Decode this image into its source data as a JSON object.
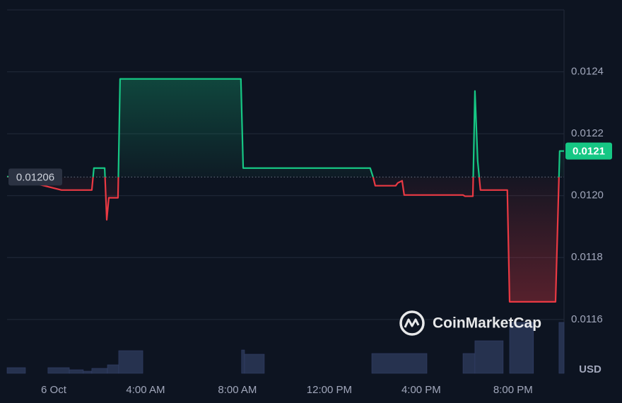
{
  "chart_data": {
    "type": "line",
    "x": [
      -2.03,
      0.34,
      1.66,
      1.75,
      2.22,
      2.31,
      2.4,
      2.8,
      2.89,
      8.15,
      8.25,
      13.78,
      13.91,
      14.0,
      14.89,
      14.98,
      15.17,
      15.26,
      17.82,
      17.91,
      18.25,
      18.34,
      18.46,
      18.58,
      19.75,
      19.85,
      21.85,
      22.03,
      22.22
    ],
    "series": [
      {
        "values": [
          0.012062,
          0.012018,
          0.012018,
          0.012089,
          0.012089,
          0.011922,
          0.011993,
          0.011993,
          0.012377,
          0.012377,
          0.012089,
          0.012089,
          0.012059,
          0.012032,
          0.012032,
          0.012041,
          0.012048,
          0.012002,
          0.012002,
          0.011998,
          0.011998,
          0.012338,
          0.012112,
          0.012018,
          0.012018,
          0.011657,
          0.011657,
          0.012144,
          0.012144
        ]
      }
    ],
    "baseline": 0.01206,
    "last_value_label": "0.0121",
    "up_color": "#16c784",
    "down_color": "#ea3943",
    "volume": {
      "x_start": [
        -2.03,
        -0.25,
        0.68,
        1.29,
        1.66,
        2.34,
        2.83,
        8.18,
        8.31,
        13.85,
        17.82,
        18.34,
        19.85,
        22.0
      ],
      "x_end": [
        -1.23,
        0.68,
        1.29,
        1.66,
        2.34,
        2.83,
        3.88,
        8.31,
        9.17,
        16.25,
        18.34,
        19.57,
        20.89,
        22.22
      ],
      "values": [
        8,
        8,
        5,
        3,
        7,
        12,
        32,
        33,
        27,
        28,
        28,
        46,
        72,
        72
      ],
      "color": "#26324f"
    },
    "xlim": [
      -2.03,
      22.22
    ],
    "xticks": [
      {
        "value": 0,
        "label": "6 Oct"
      },
      {
        "value": 4,
        "label": "4:00 AM"
      },
      {
        "value": 8,
        "label": "8:00 AM"
      },
      {
        "value": 12,
        "label": "12:00 PM"
      },
      {
        "value": 16,
        "label": "4:00 PM"
      },
      {
        "value": 20,
        "label": "8:00 PM"
      }
    ],
    "ylim": [
      0.011426,
      0.0126
    ],
    "yticks": [
      0.0116,
      0.0118,
      {
        "value": 0.012,
        "label": "0.0120"
      },
      0.0122,
      0.0124
    ],
    "grid": true,
    "currency": "USD",
    "watermark": "CoinMarketCap"
  }
}
